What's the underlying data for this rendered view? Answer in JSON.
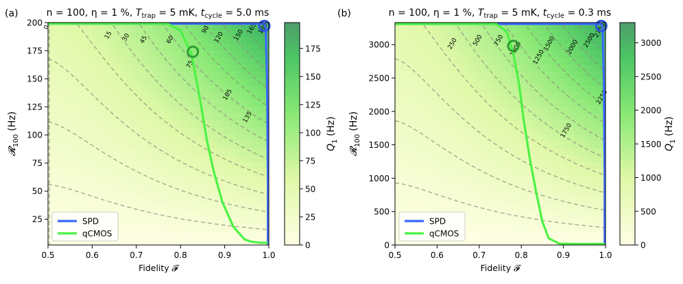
{
  "chart_data": [
    {
      "type": "heatmap",
      "panel_label": "(a)",
      "title": "n = 100, η = 1 %, T_trap = 5 mK, t_cycle = 5.0 ms",
      "title_parts": {
        "n": "n = 100,",
        "eta": "η = 1 %,",
        "ttrap_base": "T",
        "ttrap_sub": "trap",
        "ttrap_rest": " = 5 mK,",
        "tcycle_base": "t",
        "tcycle_sub": "cycle",
        "tcycle_rest": " = 5.0 ms"
      },
      "xlabel": "Fidelity 𝓕",
      "ylabel_base": "𝓡",
      "ylabel_sub": "100",
      "ylabel_rest": " (Hz)",
      "xlim": [
        0.5,
        1.0
      ],
      "ylim": [
        2,
        200
      ],
      "xticks": [
        "0.5",
        "0.6",
        "0.7",
        "0.8",
        "0.9",
        "1.0"
      ],
      "xtick_values": [
        0.5,
        0.6,
        0.7,
        0.8,
        0.9,
        1.0
      ],
      "yticks": [
        "25",
        "50",
        "75",
        "100",
        "125",
        "150",
        "175",
        "200"
      ],
      "ytick_values": [
        25,
        50,
        75,
        100,
        125,
        150,
        175,
        200
      ],
      "colorbar_label": "Q₁ (Hz)",
      "colorbar_label_base": "Q",
      "colorbar_label_sub": "1",
      "colorbar_label_rest": " (Hz)",
      "colorbar_range": [
        0,
        198
      ],
      "colorbar_ticks": [
        "0",
        "25",
        "50",
        "75",
        "100",
        "125",
        "150",
        "175"
      ],
      "colorbar_tick_values": [
        0,
        25,
        50,
        75,
        100,
        125,
        150,
        175
      ],
      "contour_levels": [
        "0",
        "15",
        "30",
        "45",
        "60",
        "75",
        "90",
        "105",
        "120",
        "135",
        "150",
        "165",
        "180"
      ],
      "contour_level_values": [
        0,
        15,
        30,
        45,
        60,
        75,
        90,
        105,
        120,
        135,
        150,
        165,
        180
      ],
      "contour_label_points": [
        [
          0.5,
          195
        ],
        [
          0.64,
          188
        ],
        [
          0.68,
          186
        ],
        [
          0.72,
          184
        ],
        [
          0.78,
          184
        ],
        [
          0.825,
          162
        ],
        [
          0.86,
          193
        ],
        [
          0.91,
          135
        ],
        [
          0.89,
          186
        ],
        [
          0.955,
          115
        ],
        [
          0.935,
          188
        ],
        [
          0.965,
          194
        ],
        [
          0.99,
          194
        ]
      ],
      "series": [
        {
          "name": "SPD",
          "color": "#3b68ff",
          "x": [
            0.5,
            0.99,
            0.993,
            0.996,
            0.998,
            0.998
          ],
          "y": [
            199,
            199,
            196,
            150,
            60,
            2
          ]
        },
        {
          "name": "qCMOS",
          "color": "#4cf244",
          "x": [
            0.5,
            0.77,
            0.8,
            0.825,
            0.845,
            0.86,
            0.875,
            0.895,
            0.92,
            0.945,
            0.96,
            0.98,
            0.998
          ],
          "y": [
            199,
            199,
            193,
            172,
            130,
            95,
            68,
            40,
            18,
            7,
            5,
            4,
            4
          ]
        }
      ],
      "markers": [
        {
          "series": "qCMOS",
          "x": 0.828,
          "y": 174
        },
        {
          "series": "SPD",
          "x": 0.99,
          "y": 197
        }
      ],
      "legend": [
        "SPD",
        "qCMOS"
      ],
      "legend_position": "bottom-left"
    },
    {
      "type": "heatmap",
      "panel_label": "(b)",
      "title": "n = 100, η = 1 %, T_trap = 5 mK, t_cycle = 0.3 ms",
      "title_parts": {
        "n": "n = 100,",
        "eta": "η = 1 %,",
        "ttrap_base": "T",
        "ttrap_sub": "trap",
        "ttrap_rest": " = 5 mK,",
        "tcycle_base": "t",
        "tcycle_sub": "cycle",
        "tcycle_rest": " = 0.3 ms"
      },
      "xlabel": "Fidelity 𝓕",
      "ylabel_base": "𝓡",
      "ylabel_sub": "100",
      "ylabel_rest": " (Hz)",
      "xlim": [
        0.5,
        1.0
      ],
      "ylim": [
        0,
        3330
      ],
      "xticks": [
        "0.5",
        "0.6",
        "0.7",
        "0.8",
        "0.9",
        "1.0"
      ],
      "xtick_values": [
        0.5,
        0.6,
        0.7,
        0.8,
        0.9,
        1.0
      ],
      "yticks": [
        "0",
        "500",
        "1000",
        "1500",
        "2000",
        "2500",
        "3000"
      ],
      "ytick_values": [
        0,
        500,
        1000,
        1500,
        2000,
        2500,
        3000
      ],
      "colorbar_label": "Q₁ (Hz)",
      "colorbar_label_base": "Q",
      "colorbar_label_sub": "1",
      "colorbar_label_rest": " (Hz)",
      "colorbar_range": [
        0,
        3300
      ],
      "colorbar_ticks": [
        "0",
        "500",
        "1000",
        "1500",
        "2000",
        "2500",
        "3000"
      ],
      "colorbar_tick_values": [
        0,
        500,
        1000,
        1500,
        2000,
        2500,
        3000
      ],
      "contour_levels": [
        "250",
        "500",
        "750",
        "1000",
        "1250",
        "1500",
        "1750",
        "2000",
        "2250",
        "2500",
        "2750"
      ],
      "contour_level_values": [
        250,
        500,
        750,
        1000,
        1250,
        1500,
        1750,
        2000,
        2250,
        2500,
        2750
      ],
      "contour_label_points": [
        [
          0.64,
          3000
        ],
        [
          0.7,
          3050
        ],
        [
          0.75,
          3050
        ],
        [
          0.79,
          2920
        ],
        [
          0.845,
          2800
        ],
        [
          0.87,
          3000
        ],
        [
          0.91,
          1700
        ],
        [
          0.925,
          2950
        ],
        [
          0.995,
          2200
        ],
        [
          0.965,
          3050
        ],
        [
          0.99,
          3200
        ]
      ],
      "series": [
        {
          "name": "SPD",
          "color": "#3b68ff",
          "x": [
            0.5,
            0.99,
            0.993,
            0.996,
            0.998,
            0.998
          ],
          "y": [
            3310,
            3310,
            3270,
            2500,
            1000,
            0
          ]
        },
        {
          "name": "qCMOS",
          "color": "#4cf244",
          "x": [
            0.5,
            0.74,
            0.765,
            0.78,
            0.795,
            0.805,
            0.82,
            0.835,
            0.85,
            0.865,
            0.89,
            0.93,
            0.998
          ],
          "y": [
            3310,
            3310,
            3200,
            2900,
            2400,
            1900,
            1300,
            800,
            350,
            100,
            20,
            15,
            15
          ]
        }
      ],
      "markers": [
        {
          "series": "qCMOS",
          "x": 0.781,
          "y": 2980
        },
        {
          "series": "SPD",
          "x": 0.99,
          "y": 3280
        }
      ],
      "legend": [
        "SPD",
        "qCMOS"
      ],
      "legend_position": "bottom-left"
    }
  ]
}
